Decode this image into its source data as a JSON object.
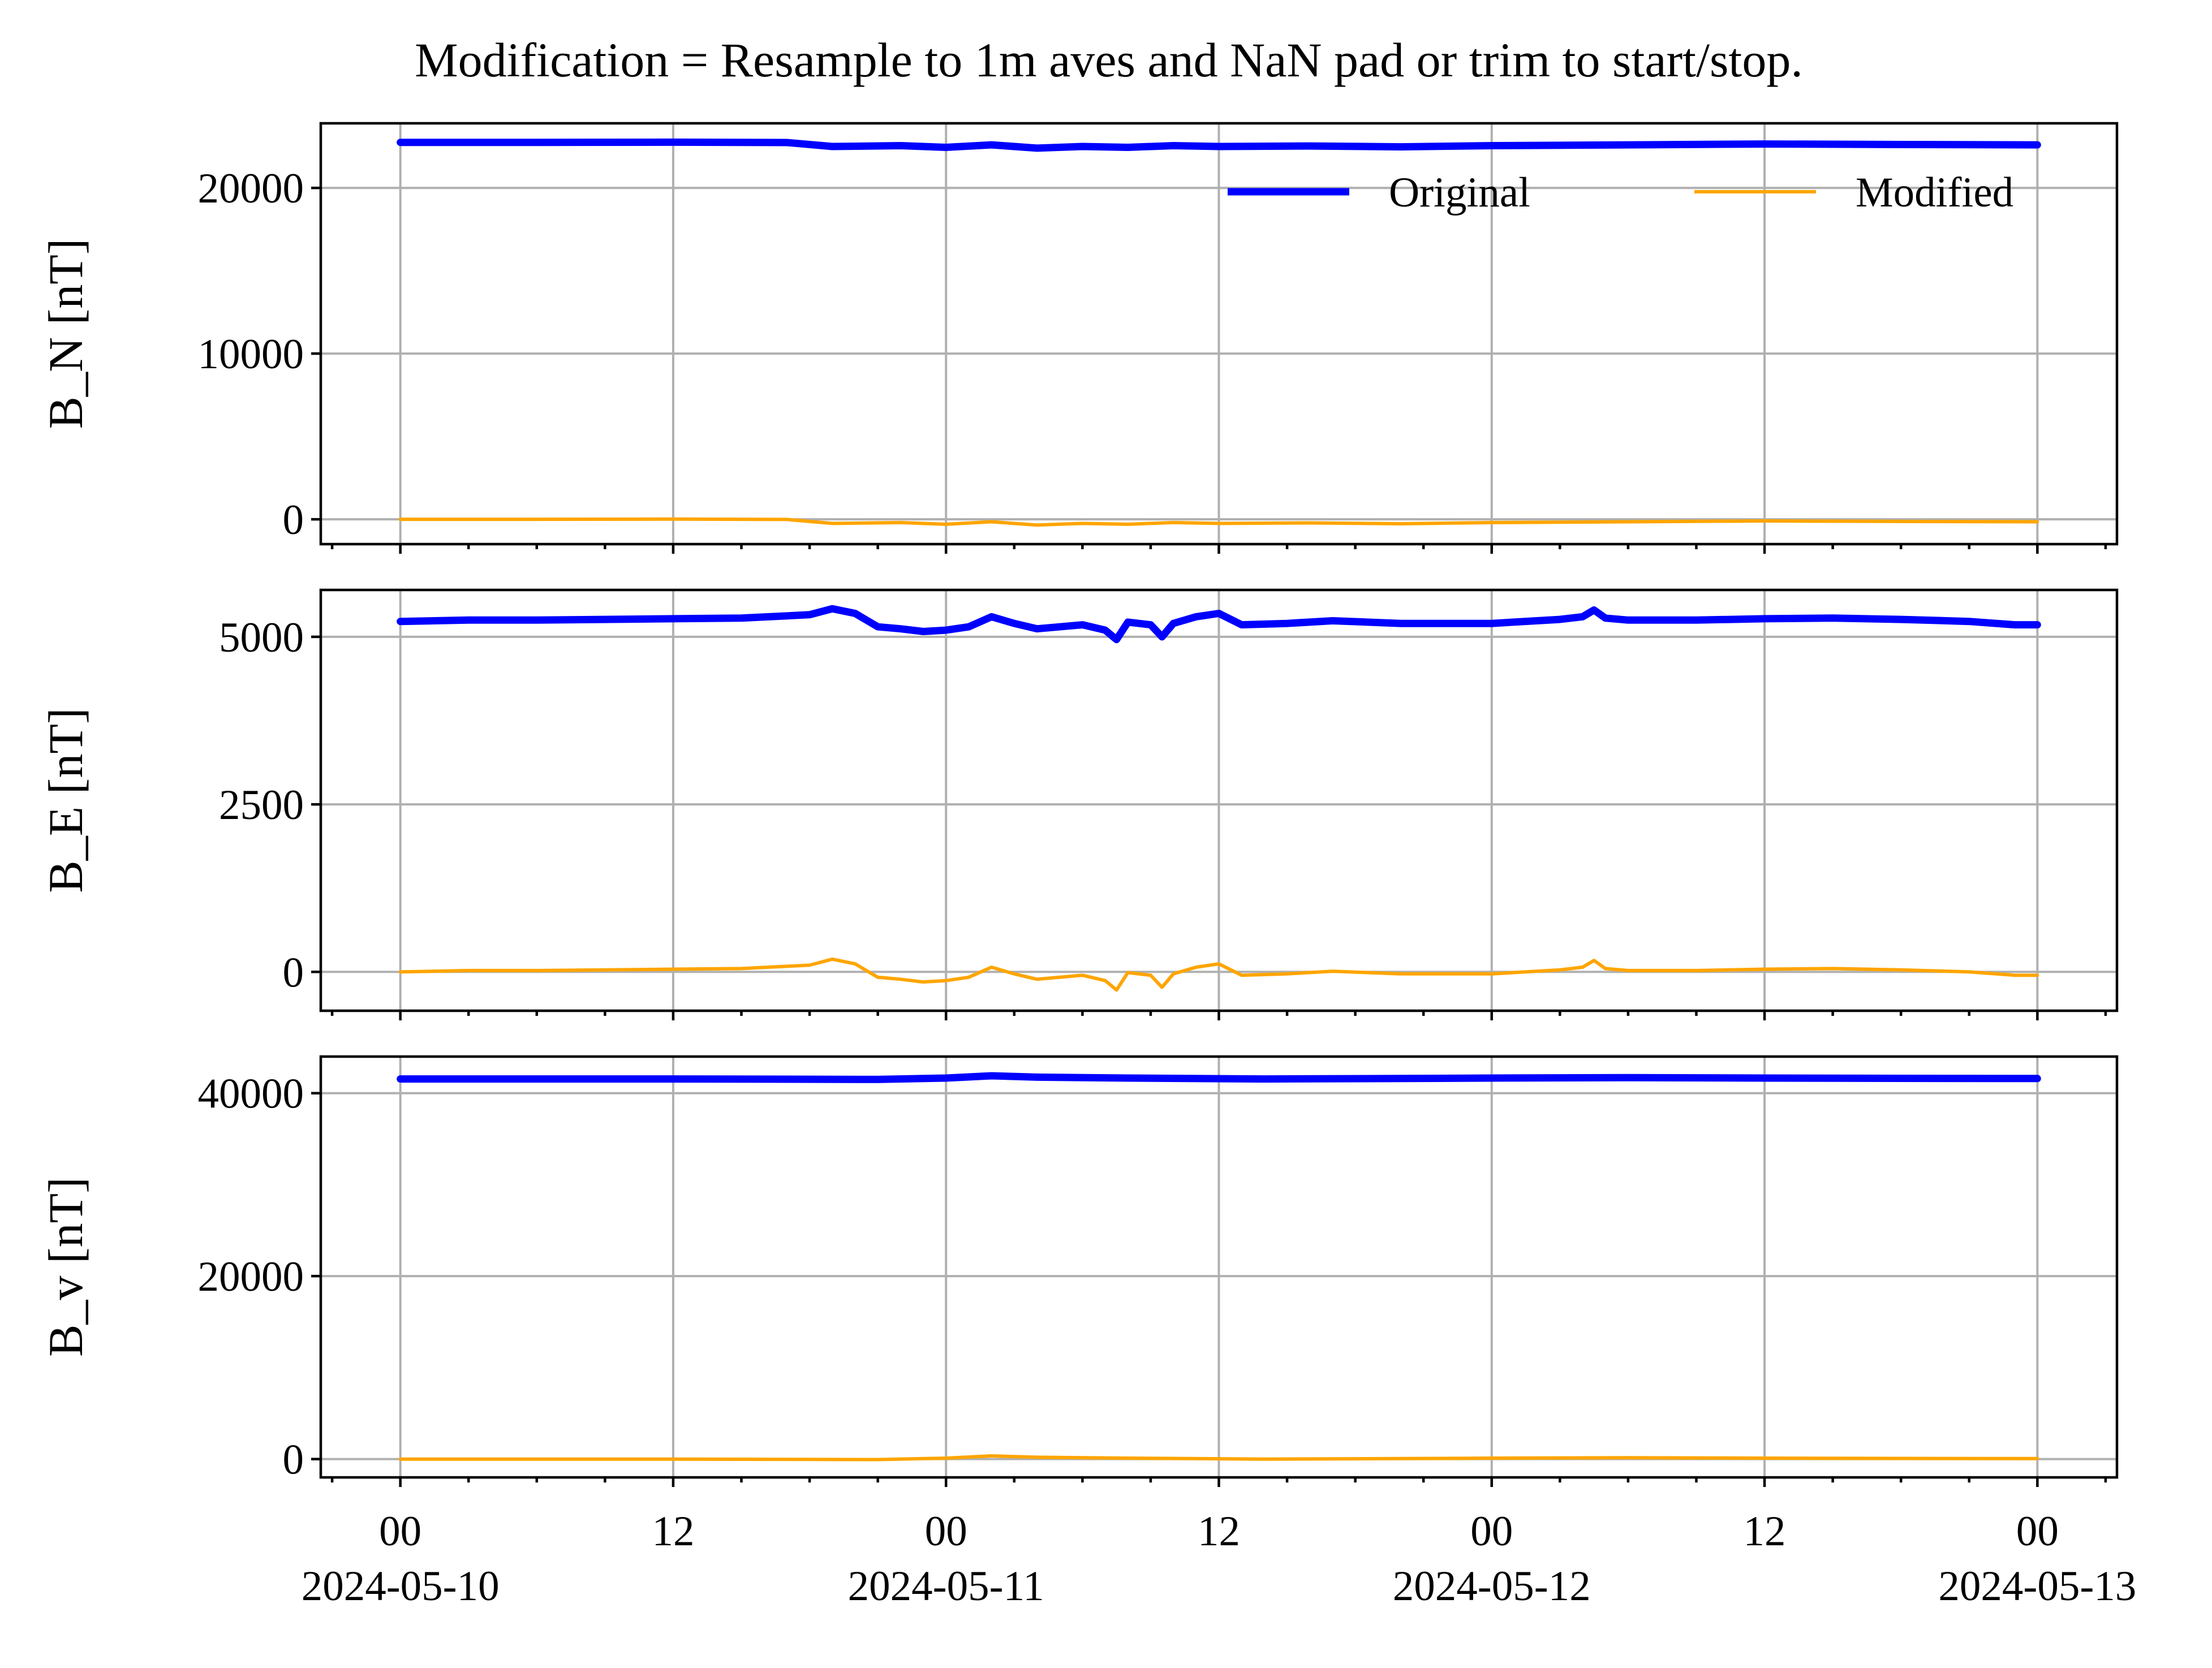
{
  "title": "Modification = Resample to 1m aves and NaN pad or trim to start/stop.",
  "colors": {
    "original": "#0000ff",
    "modified": "#ffa500",
    "grid": "#b0b0b0"
  },
  "legend": {
    "placement": "top-right",
    "entries": [
      "Original",
      "Modified"
    ]
  },
  "x_ticks": [
    {
      "major": "00",
      "minor": "2024-05-10",
      "hours": 0
    },
    {
      "major": "12",
      "minor": "",
      "hours": 12
    },
    {
      "major": "00",
      "minor": "2024-05-11",
      "hours": 24
    },
    {
      "major": "12",
      "minor": "",
      "hours": 36
    },
    {
      "major": "00",
      "minor": "2024-05-12",
      "hours": 48
    },
    {
      "major": "12",
      "minor": "",
      "hours": 60
    },
    {
      "major": "00",
      "minor": "2024-05-13",
      "hours": 72
    }
  ],
  "chart_data": [
    {
      "type": "line",
      "ylabel": "B_N [nT]",
      "ylim": [
        -1500,
        23900
      ],
      "yticks": [
        0,
        10000,
        20000
      ],
      "ytick_labels": [
        "0",
        "10000",
        "20000"
      ],
      "grid": true,
      "x": [
        "2024-05-10 00:00",
        "2024-05-10 06:00",
        "2024-05-10 12:00",
        "2024-05-10 17:00",
        "2024-05-10 19:00",
        "2024-05-10 22:00",
        "2024-05-11 00:00",
        "2024-05-11 02:00",
        "2024-05-11 04:00",
        "2024-05-11 06:00",
        "2024-05-11 08:00",
        "2024-05-11 10:00",
        "2024-05-11 12:00",
        "2024-05-11 16:00",
        "2024-05-11 20:00",
        "2024-05-12 00:00",
        "2024-05-12 06:00",
        "2024-05-12 12:00",
        "2024-05-12 18:00",
        "2024-05-13 00:00"
      ],
      "series": [
        {
          "name": "Original",
          "values": [
            22750,
            22750,
            22760,
            22740,
            22500,
            22550,
            22450,
            22600,
            22400,
            22500,
            22450,
            22550,
            22500,
            22530,
            22480,
            22550,
            22600,
            22650,
            22620,
            22600
          ]
        },
        {
          "name": "Modified",
          "values": [
            0,
            0,
            10,
            -10,
            -250,
            -200,
            -300,
            -150,
            -350,
            -250,
            -300,
            -200,
            -250,
            -220,
            -270,
            -200,
            -150,
            -100,
            -130,
            -150
          ]
        }
      ]
    },
    {
      "type": "line",
      "ylabel": "B_E [nT]",
      "ylim": [
        -580,
        5700
      ],
      "yticks": [
        0,
        2500,
        5000
      ],
      "ytick_labels": [
        "0",
        "2500",
        "5000"
      ],
      "grid": true,
      "x": [
        "2024-05-10 00:00",
        "2024-05-10 03:00",
        "2024-05-10 06:00",
        "2024-05-10 09:00",
        "2024-05-10 12:00",
        "2024-05-10 15:00",
        "2024-05-10 18:00",
        "2024-05-10 19:00",
        "2024-05-10 20:00",
        "2024-05-10 21:00",
        "2024-05-10 22:00",
        "2024-05-10 23:00",
        "2024-05-11 00:00",
        "2024-05-11 01:00",
        "2024-05-11 02:00",
        "2024-05-11 03:00",
        "2024-05-11 04:00",
        "2024-05-11 05:00",
        "2024-05-11 06:00",
        "2024-05-11 07:00",
        "2024-05-11 07:30",
        "2024-05-11 08:00",
        "2024-05-11 09:00",
        "2024-05-11 09:30",
        "2024-05-11 10:00",
        "2024-05-11 11:00",
        "2024-05-11 12:00",
        "2024-05-11 13:00",
        "2024-05-11 15:00",
        "2024-05-11 17:00",
        "2024-05-11 20:00",
        "2024-05-12 00:00",
        "2024-05-12 03:00",
        "2024-05-12 04:00",
        "2024-05-12 04:30",
        "2024-05-12 05:00",
        "2024-05-12 06:00",
        "2024-05-12 09:00",
        "2024-05-12 12:00",
        "2024-05-12 15:00",
        "2024-05-12 18:00",
        "2024-05-12 21:00",
        "2024-05-12 23:00",
        "2024-05-13 00:00"
      ],
      "series": [
        {
          "name": "Original",
          "values": [
            5230,
            5250,
            5250,
            5260,
            5270,
            5280,
            5330,
            5420,
            5350,
            5150,
            5120,
            5080,
            5100,
            5150,
            5300,
            5200,
            5120,
            5150,
            5180,
            5100,
            4960,
            5220,
            5180,
            5000,
            5200,
            5300,
            5350,
            5180,
            5200,
            5240,
            5200,
            5200,
            5260,
            5300,
            5400,
            5280,
            5250,
            5250,
            5270,
            5280,
            5260,
            5230,
            5180,
            5180
          ]
        },
        {
          "name": "Modified",
          "values": [
            0,
            20,
            20,
            30,
            40,
            50,
            100,
            190,
            120,
            -80,
            -110,
            -150,
            -130,
            -80,
            70,
            -30,
            -110,
            -80,
            -50,
            -130,
            -270,
            -10,
            -50,
            -230,
            -30,
            70,
            120,
            -50,
            -30,
            10,
            -30,
            -30,
            30,
            70,
            170,
            50,
            20,
            20,
            40,
            50,
            30,
            0,
            -50,
            -50
          ]
        }
      ]
    },
    {
      "type": "line",
      "ylabel": "B_v [nT]",
      "ylim": [
        -2000,
        44000
      ],
      "yticks": [
        0,
        20000,
        40000
      ],
      "ytick_labels": [
        "0",
        "20000",
        "40000"
      ],
      "grid": true,
      "x": [
        "2024-05-10 00:00",
        "2024-05-10 12:00",
        "2024-05-10 21:00",
        "2024-05-11 00:00",
        "2024-05-11 02:00",
        "2024-05-11 04:00",
        "2024-05-11 08:00",
        "2024-05-11 14:00",
        "2024-05-11 20:00",
        "2024-05-12 00:00",
        "2024-05-12 06:00",
        "2024-05-12 12:00",
        "2024-05-12 18:00",
        "2024-05-13 00:00"
      ],
      "series": [
        {
          "name": "Original",
          "values": [
            41550,
            41550,
            41500,
            41650,
            41900,
            41750,
            41650,
            41550,
            41600,
            41650,
            41700,
            41650,
            41620,
            41600
          ]
        },
        {
          "name": "Modified",
          "values": [
            0,
            0,
            -50,
            100,
            350,
            200,
            100,
            0,
            50,
            100,
            150,
            100,
            70,
            50
          ]
        }
      ]
    }
  ]
}
